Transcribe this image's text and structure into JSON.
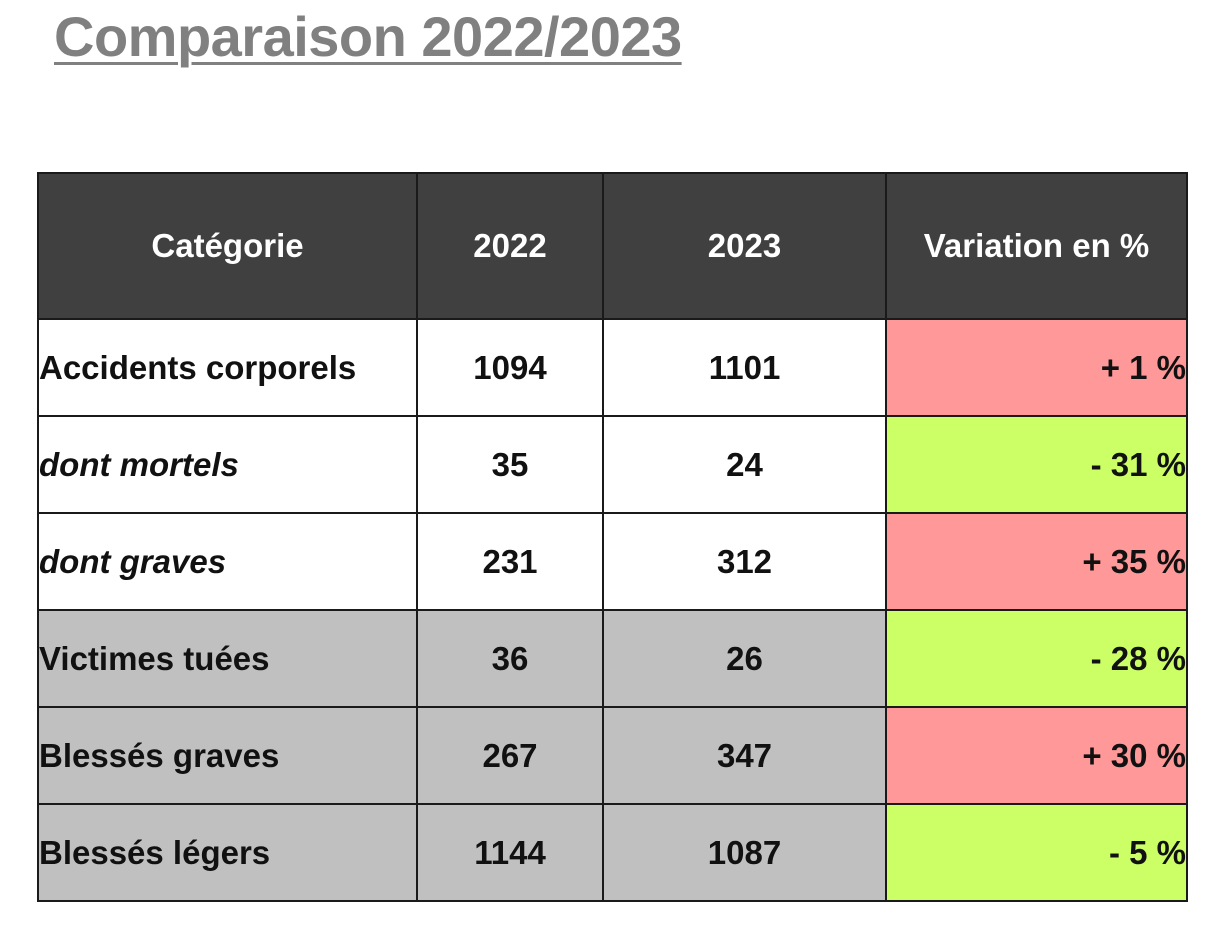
{
  "title": "Comparaison 2022/2023",
  "table": {
    "headers": [
      "Catégorie",
      "2022",
      "2023",
      "Variation en %"
    ],
    "rows": [
      {
        "category": "Accidents corporels",
        "y2022": "1094",
        "y2023": "1101",
        "variation": "+ 1 %",
        "trend": "up",
        "italic": false,
        "shade": "white"
      },
      {
        "category": "dont mortels",
        "y2022": "35",
        "y2023": "24",
        "variation": "- 31 %",
        "trend": "down",
        "italic": true,
        "shade": "white"
      },
      {
        "category": "dont graves",
        "y2022": "231",
        "y2023": "312",
        "variation": "+ 35 %",
        "trend": "up",
        "italic": true,
        "shade": "white"
      },
      {
        "category": "Victimes tuées",
        "y2022": "36",
        "y2023": "26",
        "variation": "- 28 %",
        "trend": "down",
        "italic": false,
        "shade": "gray"
      },
      {
        "category": "Blessés graves",
        "y2022": "267",
        "y2023": "347",
        "variation": "+ 30 %",
        "trend": "up",
        "italic": false,
        "shade": "gray"
      },
      {
        "category": "Blessés légers",
        "y2022": "1144",
        "y2023": "1087",
        "variation": "- 5 %",
        "trend": "down",
        "italic": false,
        "shade": "gray"
      }
    ]
  },
  "colors": {
    "header_bg": "#404040",
    "increase": "#ff9999",
    "decrease": "#ccff66",
    "victims_bg": "#c0c0c0",
    "title": "#808080"
  }
}
